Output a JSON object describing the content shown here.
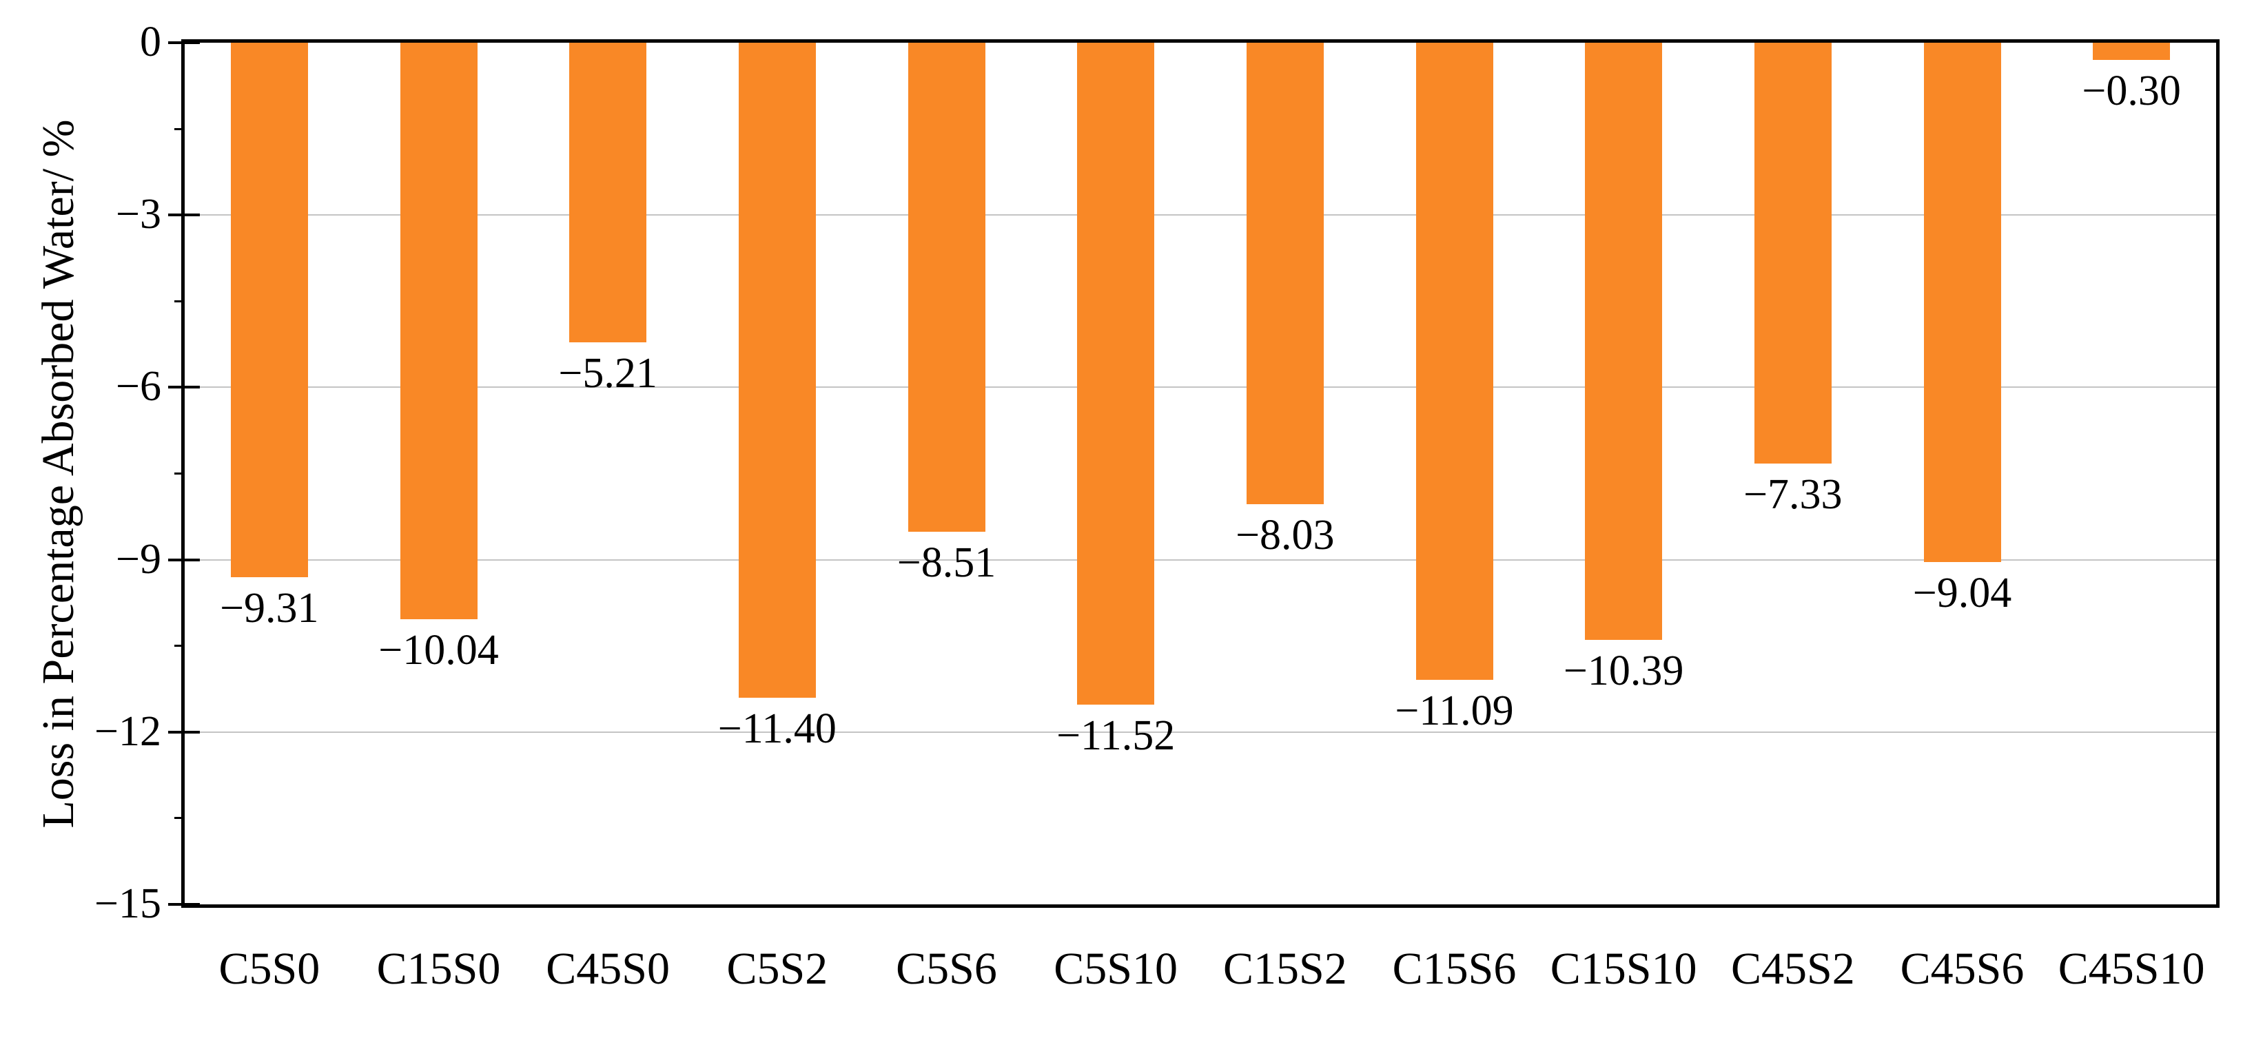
{
  "chart_data": {
    "type": "bar",
    "title": "",
    "xlabel": "",
    "ylabel": "Loss in Percentage Absorbed Water/ %",
    "categories": [
      "C5S0",
      "C15S0",
      "C45S0",
      "C5S2",
      "C5S6",
      "C5S10",
      "C15S2",
      "C15S6",
      "C15S10",
      "C45S2",
      "C45S6",
      "C45S10"
    ],
    "values": [
      -9.31,
      -10.04,
      -5.21,
      -11.4,
      -8.51,
      -11.52,
      -8.03,
      -11.09,
      -10.39,
      -7.33,
      -9.04,
      -0.3
    ],
    "value_labels": [
      "−9.31",
      "−10.04",
      "−5.21",
      "−11.40",
      "−8.51",
      "−11.52",
      "−8.03",
      "−11.09",
      "−10.39",
      "−7.33",
      "−9.04",
      "−0.30"
    ],
    "ylim": [
      -15,
      0
    ],
    "ytick_values": [
      0,
      -3,
      -6,
      -9,
      -12,
      -15
    ],
    "ytick_labels": [
      "0",
      "−3",
      "−6",
      "−9",
      "−12",
      "−15"
    ],
    "yminor_tick_values": [
      -1.5,
      -4.5,
      -7.5,
      -10.5,
      -13.5
    ],
    "grid": "horizontal major gridlines only",
    "legend_position": "none",
    "data_label_position": "below bar end",
    "bar_color": "#F98826",
    "gridline_color": "#C4C4C4",
    "axis_color": "#000000",
    "text_color": "#000000",
    "background_color": "#FFFFFF"
  }
}
